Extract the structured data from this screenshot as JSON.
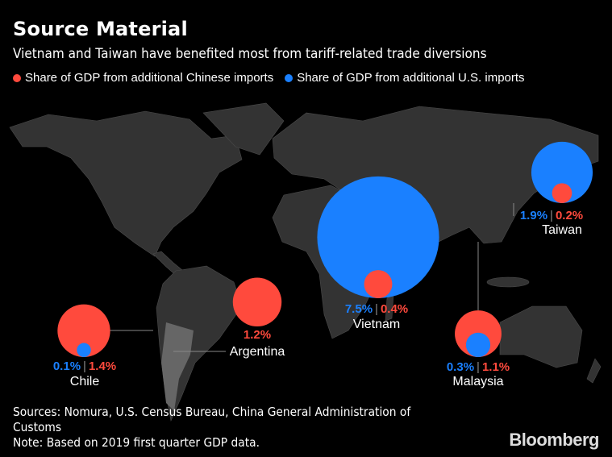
{
  "title": "Source Material",
  "subtitle": "Vietnam and Taiwan have benefited most from tariff-related trade diversions",
  "legend": [
    {
      "label": "Share of GDP from additional Chinese imports",
      "color": "#ff4a3d"
    },
    {
      "label": "Share of GDP from additional U.S. imports",
      "color": "#1a80ff"
    }
  ],
  "chart_data": {
    "type": "bubble-map",
    "series": [
      {
        "name": "Share of GDP from additional U.S. imports",
        "color": "#1a80ff"
      },
      {
        "name": "Share of GDP from additional Chinese imports",
        "color": "#ff4a3d"
      }
    ],
    "countries": [
      {
        "name": "Taiwan",
        "us_label": "1.9%",
        "china_label": "0.2%",
        "us": 1.9,
        "china": 0.2
      },
      {
        "name": "Vietnam",
        "us_label": "7.5%",
        "china_label": "0.4%",
        "us": 7.5,
        "china": 0.4
      },
      {
        "name": "Argentina",
        "us_label": null,
        "china_label": "1.2%",
        "us": null,
        "china": 1.2
      },
      {
        "name": "Chile",
        "us_label": "0.1%",
        "china_label": "1.4%",
        "us": 0.1,
        "china": 1.4
      },
      {
        "name": "Malaysia",
        "us_label": "0.3%",
        "china_label": "1.1%",
        "us": 0.3,
        "china": 1.1
      }
    ]
  },
  "footer": {
    "sources": "Sources: Nomura, U.S. Census Bureau, China General Administration of Customs",
    "note": "Note: Based on 2019 first quarter GDP data."
  },
  "brand": "Bloomberg"
}
